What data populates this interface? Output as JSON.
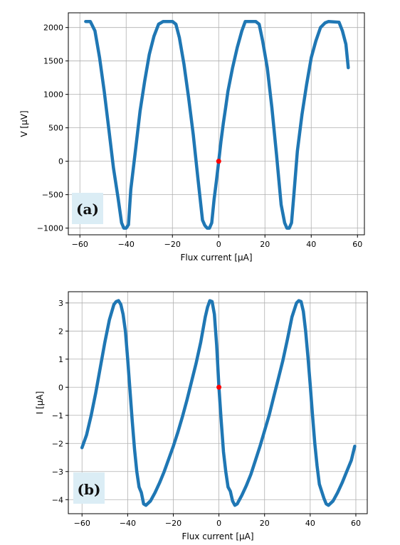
{
  "chart_data": [
    {
      "type": "line",
      "panel_label": "(a)",
      "xlabel": "Flux current [μA]",
      "ylabel": "V [μV]",
      "xlim": [
        -65,
        63
      ],
      "ylim": [
        -1100,
        2220
      ],
      "xticks": [
        -60,
        -40,
        -20,
        0,
        20,
        40,
        60
      ],
      "yticks": [
        -1000,
        -500,
        0,
        500,
        1000,
        1500,
        2000
      ],
      "tick_labels_x": [
        "−60",
        "−40",
        "−20",
        "0",
        "20",
        "40",
        "60"
      ],
      "tick_labels_y": [
        "−1000",
        "−500",
        "0",
        "500",
        "1000",
        "1500",
        "2000"
      ],
      "grid": true,
      "series_color": "#1f77b4",
      "series": [
        {
          "name": "",
          "x": [
            -57.5,
            -55.5,
            -53.5,
            -51.5,
            -49.5,
            -47.5,
            -45.5,
            -43.5,
            -42,
            -41,
            -40,
            -39,
            -38,
            -36,
            -34,
            -32,
            -30,
            -28,
            -26,
            -24,
            -22.5,
            -20,
            -18.5,
            -17,
            -15,
            -13,
            -11,
            -9,
            -7,
            -6,
            -5,
            -4,
            -3,
            -2,
            -1,
            0,
            1,
            2,
            3,
            4,
            6,
            8,
            10,
            11.5,
            16,
            17.5,
            19,
            21,
            23,
            25,
            27,
            28.5,
            29.5,
            30.5,
            31.5,
            32.5,
            34,
            36,
            38,
            40,
            42,
            44,
            46,
            47.5,
            52,
            53.5,
            55,
            56
          ],
          "y": [
            2090,
            2090,
            1950,
            1550,
            1050,
            480,
            -100,
            -550,
            -920,
            -1000,
            -1000,
            -950,
            -420,
            160,
            750,
            1200,
            1600,
            1870,
            2050,
            2090,
            2090,
            2090,
            2050,
            1850,
            1450,
            950,
            400,
            -250,
            -880,
            -960,
            -1000,
            -1000,
            -920,
            -570,
            -300,
            0,
            300,
            570,
            800,
            1050,
            1400,
            1700,
            1950,
            2090,
            2090,
            2050,
            1800,
            1400,
            800,
            100,
            -650,
            -920,
            -1000,
            -1000,
            -920,
            -500,
            150,
            700,
            1150,
            1550,
            1800,
            2000,
            2070,
            2090,
            2080,
            1950,
            1750,
            1400
          ]
        }
      ],
      "markers": [
        {
          "x": 0,
          "y": 0,
          "color": "#ff0000"
        }
      ]
    },
    {
      "type": "line",
      "panel_label": "(b)",
      "xlabel": "Flux current [μA]",
      "ylabel": "I [μA]",
      "xlim": [
        -66,
        65
      ],
      "ylim": [
        -4.5,
        3.4
      ],
      "xticks": [
        -60,
        -40,
        -20,
        0,
        20,
        40,
        60
      ],
      "yticks": [
        -4,
        -3,
        -2,
        -1,
        0,
        1,
        2,
        3
      ],
      "tick_labels_x": [
        "−60",
        "−40",
        "−20",
        "0",
        "20",
        "40",
        "60"
      ],
      "tick_labels_y": [
        "−4",
        "−3",
        "−2",
        "−1",
        "0",
        "1",
        "2",
        "3"
      ],
      "grid": true,
      "series_color": "#1f77b4",
      "series": [
        {
          "name": "",
          "x": [
            -60,
            -58,
            -56,
            -54,
            -52,
            -50,
            -48,
            -46,
            -45,
            -44,
            -43,
            -42,
            -41,
            -40,
            -39,
            -38,
            -37,
            -36,
            -35,
            -34,
            -33,
            -32,
            -30,
            -28,
            -26,
            -24,
            -22,
            -20,
            -18,
            -16,
            -14,
            -12,
            -10,
            -8,
            -6,
            -5,
            -4,
            -3,
            -2,
            -1,
            0,
            1,
            2,
            3,
            4,
            5,
            6,
            7,
            8,
            10,
            12,
            14,
            16,
            18,
            20,
            22,
            24,
            26,
            28,
            30,
            32,
            34,
            35,
            36,
            37,
            38,
            39,
            40,
            41,
            42,
            43,
            44,
            45,
            46,
            47,
            48,
            50,
            52,
            54,
            56,
            58,
            59.5
          ],
          "y": [
            -2.15,
            -1.7,
            -1.0,
            -0.2,
            0.7,
            1.6,
            2.4,
            2.95,
            3.05,
            3.08,
            2.95,
            2.6,
            2.0,
            1.0,
            -0.1,
            -1.2,
            -2.2,
            -3.0,
            -3.55,
            -3.75,
            -4.15,
            -4.2,
            -4.05,
            -3.75,
            -3.4,
            -3.0,
            -2.55,
            -2.1,
            -1.6,
            -1.05,
            -0.45,
            0.2,
            0.85,
            1.6,
            2.5,
            2.85,
            3.08,
            3.05,
            2.6,
            1.5,
            0.0,
            -1.2,
            -2.3,
            -3.0,
            -3.55,
            -3.7,
            -4.05,
            -4.2,
            -4.15,
            -3.85,
            -3.5,
            -3.1,
            -2.6,
            -2.1,
            -1.55,
            -1.0,
            -0.35,
            0.3,
            0.95,
            1.7,
            2.5,
            3.0,
            3.08,
            3.05,
            2.7,
            2.0,
            1.1,
            0.1,
            -1.0,
            -2.0,
            -2.8,
            -3.45,
            -3.7,
            -3.95,
            -4.15,
            -4.2,
            -4.05,
            -3.75,
            -3.4,
            -3.0,
            -2.6,
            -2.1
          ]
        }
      ],
      "markers": [
        {
          "x": 0,
          "y": 0,
          "color": "#ff0000"
        }
      ]
    }
  ]
}
